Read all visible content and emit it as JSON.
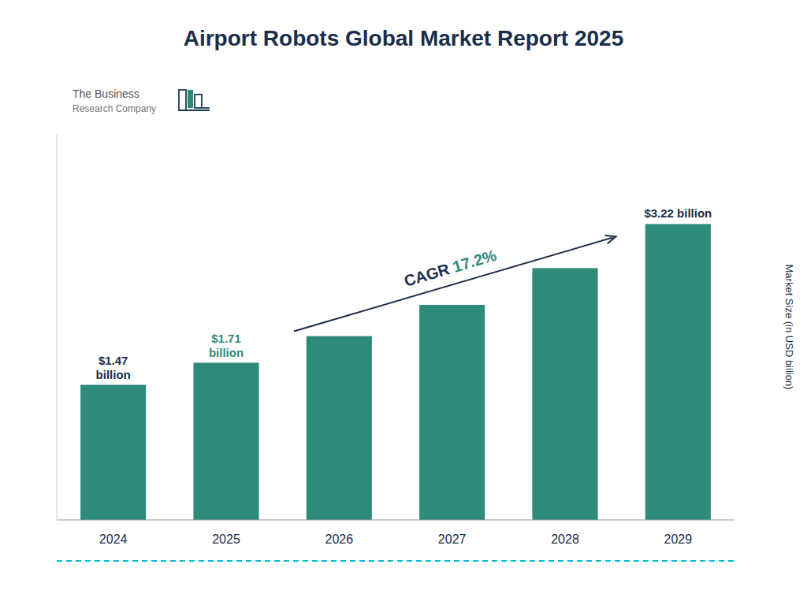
{
  "chart_data": {
    "type": "bar",
    "title": "Airport Robots Global Market Report 2025",
    "y_label": "Market Size (in USD billion)",
    "categories": [
      "2024",
      "2025",
      "2026",
      "2027",
      "2028",
      "2029"
    ],
    "values": [
      1.47,
      1.71,
      2.0,
      2.34,
      2.74,
      3.22
    ],
    "value_labels": [
      "$1.47\nbillion",
      "$1.71\nbillion",
      null,
      null,
      null,
      "$3.22 billion"
    ],
    "data_labels": true,
    "color": "#2e8b7a",
    "ylim": [
      0,
      4.2
    ],
    "grid": false,
    "tick_labels": "x",
    "annotations": [
      "CAGR ",
      "17.2%",
      "The Business",
      "Research Company"
    ]
  }
}
